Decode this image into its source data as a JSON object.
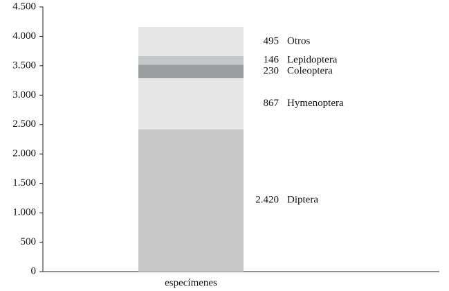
{
  "chart_data": {
    "type": "bar",
    "stacked": true,
    "categories": [
      "especímenes"
    ],
    "series": [
      {
        "name": "Diptera",
        "color": "#c8c8c9",
        "values": [
          2420
        ],
        "value_labels": [
          "2.420"
        ]
      },
      {
        "name": "Hymenoptera",
        "color": "#e6e6e7",
        "values": [
          867
        ]
      },
      {
        "name": "Coleoptera",
        "color": "#9d9ea0",
        "values": [
          230
        ]
      },
      {
        "name": "Lepidoptera",
        "color": "#c5c6c7",
        "values": [
          146
        ]
      },
      {
        "name": "Otros",
        "color": "#e6e6e7",
        "values": [
          495
        ]
      }
    ],
    "ylim": [
      0,
      4500
    ],
    "yticks": [
      0,
      500,
      {
        "value": 1000,
        "label": "1.000"
      },
      {
        "value": 1500,
        "label": "1.500"
      },
      {
        "value": 2000,
        "label": "2.000"
      },
      {
        "value": 2500,
        "label": "2.500"
      },
      {
        "value": 3000,
        "label": "3.000"
      },
      {
        "value": 3500,
        "label": "3.500"
      },
      {
        "value": 4000,
        "label": "4.000"
      },
      {
        "value": 4500,
        "label": "4.500"
      }
    ]
  }
}
